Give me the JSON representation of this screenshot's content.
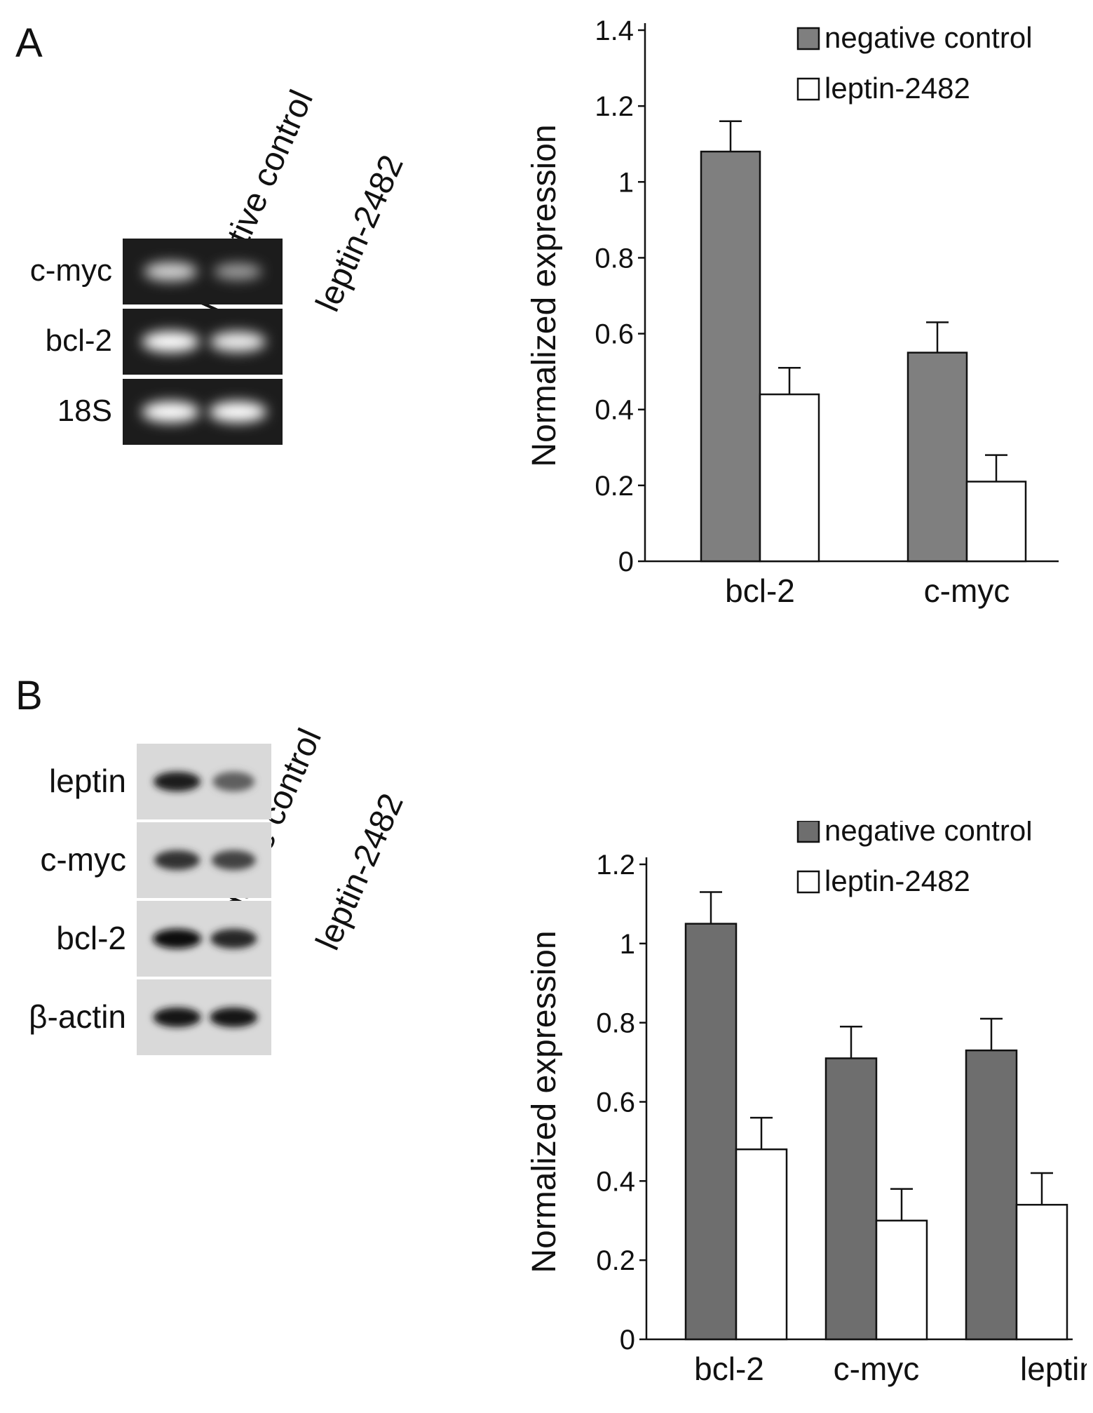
{
  "panels": [
    {
      "letter": "A",
      "lanes": [
        "negative  control",
        "leptin-2482"
      ],
      "blot": {
        "style": "gel",
        "rows": [
          {
            "label": "c-myc",
            "bands": [
              0.75,
              0.45
            ]
          },
          {
            "label": "bcl-2",
            "bands": [
              1.0,
              0.9
            ]
          },
          {
            "label": "18S",
            "bands": [
              1.0,
              1.0
            ]
          }
        ]
      }
    },
    {
      "letter": "B",
      "lanes": [
        "negative control",
        "leptin-2482"
      ],
      "blot": {
        "style": "western",
        "rows": [
          {
            "label": "leptin",
            "bands": [
              0.9,
              0.55
            ]
          },
          {
            "label": "c-myc",
            "bands": [
              0.8,
              0.7
            ]
          },
          {
            "label": "bcl-2",
            "bands": [
              1.0,
              0.85
            ]
          },
          {
            "label": "β-actin",
            "bands": [
              0.95,
              0.95
            ]
          }
        ]
      }
    }
  ],
  "chart_data": [
    {
      "type": "bar",
      "panel": "A",
      "categories": [
        "bcl-2",
        "c-myc"
      ],
      "series": [
        {
          "name": "negative control",
          "values": [
            1.08,
            0.55
          ],
          "errors": [
            0.08,
            0.08
          ],
          "color": "#7f7f7f"
        },
        {
          "name": "leptin-2482",
          "values": [
            0.44,
            0.21
          ],
          "errors": [
            0.07,
            0.07
          ],
          "color": "#ffffff"
        }
      ],
      "ylabel": "Normalized expression",
      "ylim": [
        0,
        1.4
      ],
      "yticks": [
        "0",
        "0.2",
        "0.4",
        "0.6",
        "0.8",
        "1",
        "1.2",
        "1.4"
      ],
      "legend_position": "top-right",
      "grid": false
    },
    {
      "type": "bar",
      "panel": "B",
      "categories": [
        "bcl-2",
        "c-myc",
        "leptin"
      ],
      "series": [
        {
          "name": "negative control",
          "values": [
            1.05,
            0.71,
            0.73
          ],
          "errors": [
            0.08,
            0.08,
            0.08
          ],
          "color": "#6e6e6e"
        },
        {
          "name": "leptin-2482",
          "values": [
            0.48,
            0.3,
            0.34
          ],
          "errors": [
            0.08,
            0.08,
            0.08
          ],
          "color": "#ffffff"
        }
      ],
      "ylabel": "Normalized expression",
      "ylim": [
        0,
        1.2
      ],
      "yticks": [
        "0",
        "0.2",
        "0.4",
        "0.6",
        "0.8",
        "1",
        "1.2"
      ],
      "legend_position": "top-right",
      "grid": false
    }
  ]
}
